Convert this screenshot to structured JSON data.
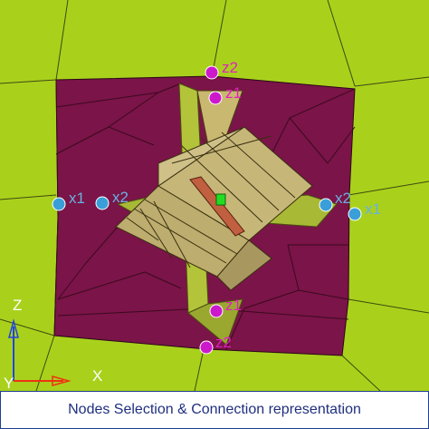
{
  "viewport": {
    "node_labels": {
      "z2_top": "z2",
      "z1_top": "z1",
      "x1_left": "x1",
      "x2_left": "x2",
      "x2_right": "x2",
      "x1_right": "x1",
      "z1_bottom": "z1",
      "z2_bottom": "z2"
    },
    "axis_triad": {
      "z_label": "Z",
      "y_label": "Y",
      "x_label": "X"
    },
    "colors": {
      "background_mesh": "#a9d11c",
      "plate": "#7b1448",
      "beam": "#b8a86a",
      "web_plate": "#b3c43a",
      "node_magenta": "#cc19cc",
      "node_blue": "#3a9fd8",
      "label_magenta": "#e020c0",
      "label_blue": "#6ab0e0",
      "center_node": "#22dd22"
    }
  },
  "caption": {
    "text": "Nodes Selection & Connection representation"
  }
}
